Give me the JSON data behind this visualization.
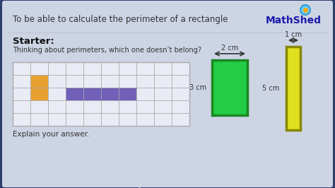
{
  "bg_color": "#2d3f6b",
  "panel_color": "#cdd4e4",
  "title_text": "To be able to calculate the perimeter of a rectangle",
  "title_color": "#333333",
  "mathshed_text": "MathShed",
  "mathshed_color": "#1a1aaa",
  "starter_text": "Starter:",
  "starter_color": "#111111",
  "subtext": "Thinking about perimeters, which one doesn’t belong?",
  "subtext_color": "#333333",
  "explain_text": "Explain your answer.",
  "explain_color": "#333333",
  "grid_color": "#aaaaaa",
  "grid_bg": "#eaecf5",
  "orange_color": "#e8a030",
  "purple_color": "#7060b8",
  "green_color": "#22cc44",
  "green_border": "#1a8822",
  "yellow_color": "#e0e020",
  "yellow_border": "#888800",
  "rect2_label_top": "2 cm",
  "rect2_label_left": "3 cm",
  "rect3_label_top": "1 cm",
  "rect3_label_left": "5 cm",
  "arrow_color": "#333333"
}
